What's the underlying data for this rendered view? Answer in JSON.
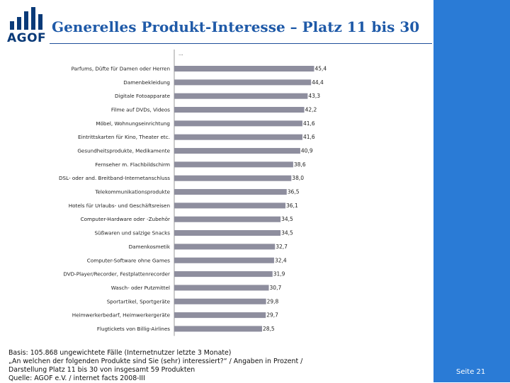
{
  "header": {
    "logo_text": "AGOF",
    "title": "Generelles Produkt-Interesse – Platz 11 bis 30"
  },
  "chart_data": {
    "type": "bar",
    "orientation": "horizontal",
    "title": "Generelles Produkt-Interesse – Platz 11 bis 30",
    "continuation_label": "...",
    "unit": "Prozent",
    "categories": [
      "Parfums, Düfte für Damen oder Herren",
      "Damenbekleidung",
      "Digitale Fotoapparate",
      "Filme auf DVDs, Videos",
      "Möbel, Wohnungseinrichtung",
      "Eintrittskarten für Kino, Theater etc.",
      "Gesundheitsprodukte, Medikamente",
      "Fernseher m. Flachbildschirm",
      "DSL- oder and. Breitband-Internetanschluss",
      "Telekommunikationsprodukte",
      "Hotels für Urlaubs- und Geschäftsreisen",
      "Computer-Hardware oder -Zubehör",
      "Süßwaren und salzige Snacks",
      "Damenkosmetik",
      "Computer-Software ohne Games",
      "DVD-Player/Recorder, Festplattenrecorder",
      "Wasch- oder Putzmittel",
      "Sportartikel, Sportgeräte",
      "Heimwerkerbedarf, Heimwerkergeräte",
      "Flugtickets von Billig-Airlines"
    ],
    "values": [
      45.4,
      44.4,
      43.3,
      42.2,
      41.6,
      41.6,
      40.9,
      38.6,
      38.0,
      36.5,
      36.1,
      34.5,
      34.5,
      32.7,
      32.4,
      31.9,
      30.7,
      29.8,
      29.7,
      28.5
    ],
    "value_labels": [
      "45,4",
      "44,4",
      "43,3",
      "42,2",
      "41,6",
      "41,6",
      "40,9",
      "38,6",
      "38,0",
      "36,5",
      "36,1",
      "34,5",
      "34,5",
      "32,7",
      "32,4",
      "31,9",
      "30,7",
      "29,8",
      "29,7",
      "28,5"
    ],
    "xlim": [
      0,
      50
    ],
    "grid": false,
    "colors": {
      "bar": "#8e8e9e"
    }
  },
  "footnote": {
    "lines": [
      "Basis: 105.868 ungewichtete Fälle (Internetnutzer letzte 3 Monate)",
      "„An welchen der folgenden Produkte sind Sie (sehr) interessiert?“ / Angaben in Prozent /",
      "Darstellung Platz 11 bis 30 von insgesamt 59 Produkten",
      "Quelle: AGOF e.V. / internet facts 2008-III"
    ]
  },
  "sidebar": {
    "page_label": "Seite 21",
    "color": "#2a7bd6"
  },
  "colors": {
    "title": "#1f5aa8",
    "logo": "#0a3a78"
  }
}
